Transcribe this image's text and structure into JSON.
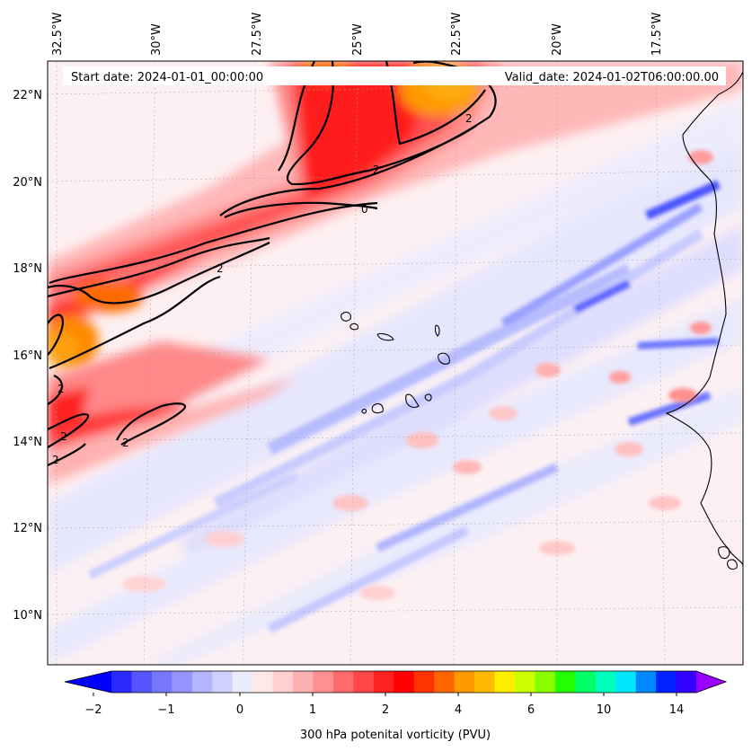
{
  "map": {
    "start_label": "Start date: 2024-01-01_00:00:00",
    "valid_label": "Valid_date: 2024-01-02T06:00:00.00",
    "lon_labels": [
      "32.5°W",
      "30°W",
      "27.5°W",
      "25°W",
      "22.5°W",
      "20°W",
      "17.5°W"
    ],
    "lat_labels": [
      "22°N",
      "20°N",
      "18°N",
      "16°N",
      "14°N",
      "12°N",
      "10°N"
    ],
    "contour_labels": [
      "2",
      "2",
      "2",
      "2",
      "2",
      "2",
      "2",
      "0"
    ]
  },
  "colorbar": {
    "label": "300 hPa potenital vorticity (PVU)",
    "ticks": [
      "−2",
      "−1",
      "0",
      "1",
      "2",
      "4",
      "6",
      "10",
      "14"
    ],
    "colors": [
      "#0000ff",
      "#2a2aff",
      "#5555ff",
      "#7878ff",
      "#9494ff",
      "#b4b4ff",
      "#d0d0ff",
      "#ececff",
      "#ffe8e8",
      "#ffd0d0",
      "#ffb0b0",
      "#ff9090",
      "#ff6a6a",
      "#ff4646",
      "#ff2020",
      "#ff0000",
      "#ff3300",
      "#ff6600",
      "#ff9900",
      "#ffbb00",
      "#ffee00",
      "#ccff00",
      "#88ff00",
      "#22ff00",
      "#00ff66",
      "#00ffbb",
      "#00e6ff",
      "#0088ff",
      "#0022ff",
      "#3300ff",
      "#9900ff"
    ]
  }
}
